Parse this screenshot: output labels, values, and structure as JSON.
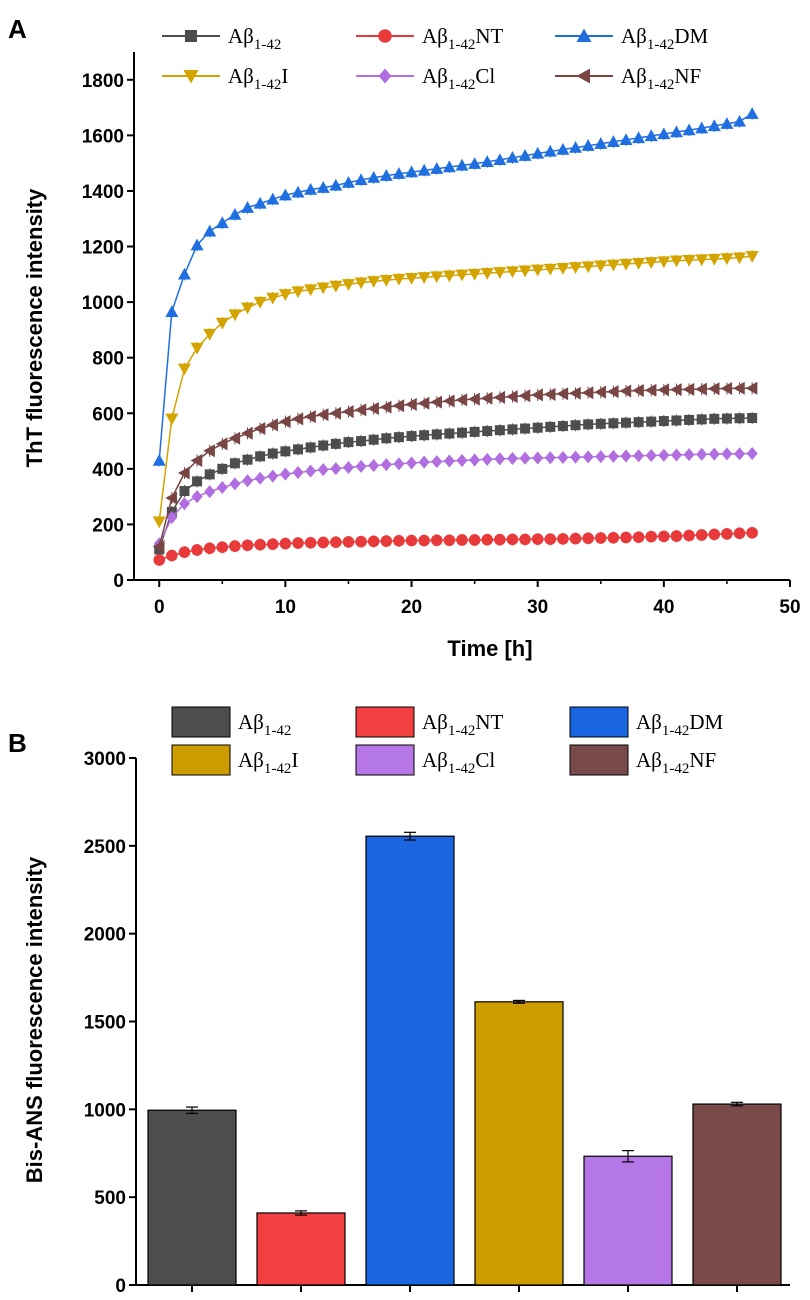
{
  "chart_data": [
    {
      "panel": "A",
      "type": "line",
      "xlabel": "Time [h]",
      "ylabel": "ThT fluorescence intensity",
      "xlim": [
        -2,
        50
      ],
      "ylim": [
        0,
        1900
      ],
      "xticks": [
        0,
        10,
        20,
        30,
        40,
        50
      ],
      "yticks": [
        0,
        200,
        400,
        600,
        800,
        1000,
        1200,
        1400,
        1600,
        1800
      ],
      "series": [
        {
          "name": "Aβ1-42",
          "color": "#4d4d4d",
          "marker": "square",
          "x": [
            0,
            1,
            2,
            3,
            4,
            5,
            6,
            7,
            8,
            9,
            10,
            11,
            12,
            13,
            14,
            15,
            16,
            17,
            18,
            19,
            20,
            21,
            22,
            23,
            24,
            25,
            26,
            27,
            28,
            29,
            30,
            31,
            32,
            33,
            34,
            35,
            36,
            37,
            38,
            39,
            40,
            41,
            42,
            43,
            44,
            45,
            46,
            47
          ],
          "y": [
            110,
            245,
            320,
            355,
            380,
            400,
            420,
            433,
            445,
            455,
            463,
            470,
            477,
            484,
            490,
            496,
            500,
            505,
            510,
            514,
            518,
            521,
            524,
            527,
            530,
            533,
            536,
            539,
            542,
            545,
            548,
            551,
            554,
            557,
            560,
            562,
            564,
            566,
            568,
            570,
            572,
            574,
            576,
            578,
            580,
            581,
            582,
            583
          ]
        },
        {
          "name": "Aβ1-42NT",
          "color": "#e83a3a",
          "marker": "circle",
          "x": [
            0,
            1,
            2,
            3,
            4,
            5,
            6,
            7,
            8,
            9,
            10,
            11,
            12,
            13,
            14,
            15,
            16,
            17,
            18,
            19,
            20,
            21,
            22,
            23,
            24,
            25,
            26,
            27,
            28,
            29,
            30,
            31,
            32,
            33,
            34,
            35,
            36,
            37,
            38,
            39,
            40,
            41,
            42,
            43,
            44,
            45,
            46,
            47
          ],
          "y": [
            72,
            88,
            100,
            108,
            114,
            118,
            122,
            125,
            127,
            129,
            131,
            133,
            134,
            135,
            136,
            137,
            138,
            139,
            140,
            141,
            142,
            142,
            143,
            143,
            144,
            144,
            145,
            145,
            146,
            146,
            147,
            147,
            148,
            149,
            150,
            151,
            152,
            153,
            154,
            156,
            157,
            158,
            160,
            162,
            164,
            166,
            168,
            170
          ]
        },
        {
          "name": "Aβ1-42DM",
          "color": "#1f6fe0",
          "marker": "triangle-up",
          "x": [
            0,
            1,
            2,
            3,
            4,
            5,
            6,
            7,
            8,
            9,
            10,
            11,
            12,
            13,
            14,
            15,
            16,
            17,
            18,
            19,
            20,
            21,
            22,
            23,
            24,
            25,
            26,
            27,
            28,
            29,
            30,
            31,
            32,
            33,
            34,
            35,
            36,
            37,
            38,
            39,
            40,
            41,
            42,
            43,
            44,
            45,
            46,
            47
          ],
          "y": [
            430,
            965,
            1100,
            1205,
            1255,
            1285,
            1315,
            1340,
            1355,
            1370,
            1385,
            1395,
            1405,
            1412,
            1420,
            1430,
            1440,
            1448,
            1455,
            1462,
            1468,
            1474,
            1480,
            1486,
            1492,
            1498,
            1505,
            1512,
            1520,
            1527,
            1535,
            1542,
            1549,
            1556,
            1563,
            1570,
            1577,
            1584,
            1591,
            1598,
            1605,
            1612,
            1619,
            1626,
            1634,
            1642,
            1650,
            1678
          ]
        },
        {
          "name": "Aβ1-42I",
          "color": "#d4a400",
          "marker": "triangle-down",
          "x": [
            0,
            1,
            2,
            3,
            4,
            5,
            6,
            7,
            8,
            9,
            10,
            11,
            12,
            13,
            14,
            15,
            16,
            17,
            18,
            19,
            20,
            21,
            22,
            23,
            24,
            25,
            26,
            27,
            28,
            29,
            30,
            31,
            32,
            33,
            34,
            35,
            36,
            37,
            38,
            39,
            40,
            41,
            42,
            43,
            44,
            45,
            46,
            47
          ],
          "y": [
            210,
            580,
            760,
            835,
            885,
            925,
            955,
            980,
            1000,
            1015,
            1028,
            1038,
            1045,
            1052,
            1058,
            1064,
            1070,
            1075,
            1079,
            1083,
            1086,
            1089,
            1092,
            1095,
            1098,
            1101,
            1104,
            1107,
            1110,
            1113,
            1116,
            1119,
            1122,
            1125,
            1128,
            1131,
            1134,
            1137,
            1140,
            1143,
            1146,
            1149,
            1151,
            1153,
            1155,
            1157,
            1160,
            1165
          ]
        },
        {
          "name": "Aβ1-42Cl",
          "color": "#b06ee0",
          "marker": "diamond",
          "x": [
            0,
            1,
            2,
            3,
            4,
            5,
            6,
            7,
            8,
            9,
            10,
            11,
            12,
            13,
            14,
            15,
            16,
            17,
            18,
            19,
            20,
            21,
            22,
            23,
            24,
            25,
            26,
            27,
            28,
            29,
            30,
            31,
            32,
            33,
            34,
            35,
            36,
            37,
            38,
            39,
            40,
            41,
            42,
            43,
            44,
            45,
            46,
            47
          ],
          "y": [
            130,
            225,
            275,
            300,
            318,
            333,
            346,
            357,
            366,
            374,
            381,
            387,
            392,
            397,
            401,
            405,
            409,
            412,
            415,
            418,
            421,
            424,
            426,
            428,
            430,
            432,
            434,
            436,
            437,
            438,
            439,
            440,
            441,
            442,
            443,
            444,
            445,
            446,
            447,
            448,
            449,
            450,
            451,
            452,
            453,
            454,
            454,
            455
          ]
        },
        {
          "name": "Aβ1-42NF",
          "color": "#7a4545",
          "marker": "triangle-left",
          "x": [
            0,
            1,
            2,
            3,
            4,
            5,
            6,
            7,
            8,
            9,
            10,
            11,
            12,
            13,
            14,
            15,
            16,
            17,
            18,
            19,
            20,
            21,
            22,
            23,
            24,
            25,
            26,
            27,
            28,
            29,
            30,
            31,
            32,
            33,
            34,
            35,
            36,
            37,
            38,
            39,
            40,
            41,
            42,
            43,
            44,
            45,
            46,
            47
          ],
          "y": [
            120,
            295,
            385,
            430,
            465,
            490,
            510,
            528,
            545,
            558,
            570,
            580,
            588,
            595,
            600,
            606,
            612,
            617,
            622,
            627,
            632,
            636,
            640,
            644,
            648,
            651,
            654,
            657,
            660,
            663,
            666,
            668,
            670,
            672,
            674,
            676,
            678,
            680,
            682,
            683,
            684,
            685,
            686,
            687,
            688,
            689,
            690,
            690
          ]
        }
      ]
    },
    {
      "panel": "B",
      "type": "bar",
      "ylabel": "Bis-ANS fluorescence intensity",
      "ylim": [
        0,
        3000
      ],
      "yticks": [
        0,
        500,
        1000,
        1500,
        2000,
        2500,
        3000
      ],
      "categories": [
        "Aβ1-42",
        "Aβ1-42NT",
        "Aβ1-42DM",
        "Aβ1-42I",
        "Aβ1-42Cl",
        "Aβ1-42NF"
      ],
      "values": [
        995,
        410,
        2555,
        1612,
        733,
        1030
      ],
      "errors": [
        18,
        12,
        22,
        8,
        32,
        10
      ],
      "colors": [
        "#4d4d4d",
        "#f23f3f",
        "#1a66e0",
        "#cc9c00",
        "#b577e6",
        "#7a4a4a"
      ]
    }
  ],
  "legend_labels": [
    {
      "base": "Aβ",
      "sub": "1-42",
      "suffix": ""
    },
    {
      "base": "Aβ",
      "sub": "1-42",
      "suffix": "NT"
    },
    {
      "base": "Aβ",
      "sub": "1-42",
      "suffix": "DM"
    },
    {
      "base": "Aβ",
      "sub": "1-42",
      "suffix": "I"
    },
    {
      "base": "Aβ",
      "sub": "1-42",
      "suffix": "Cl"
    },
    {
      "base": "Aβ",
      "sub": "1-42",
      "suffix": "NF"
    }
  ],
  "panel_labels": [
    "A",
    "B"
  ]
}
